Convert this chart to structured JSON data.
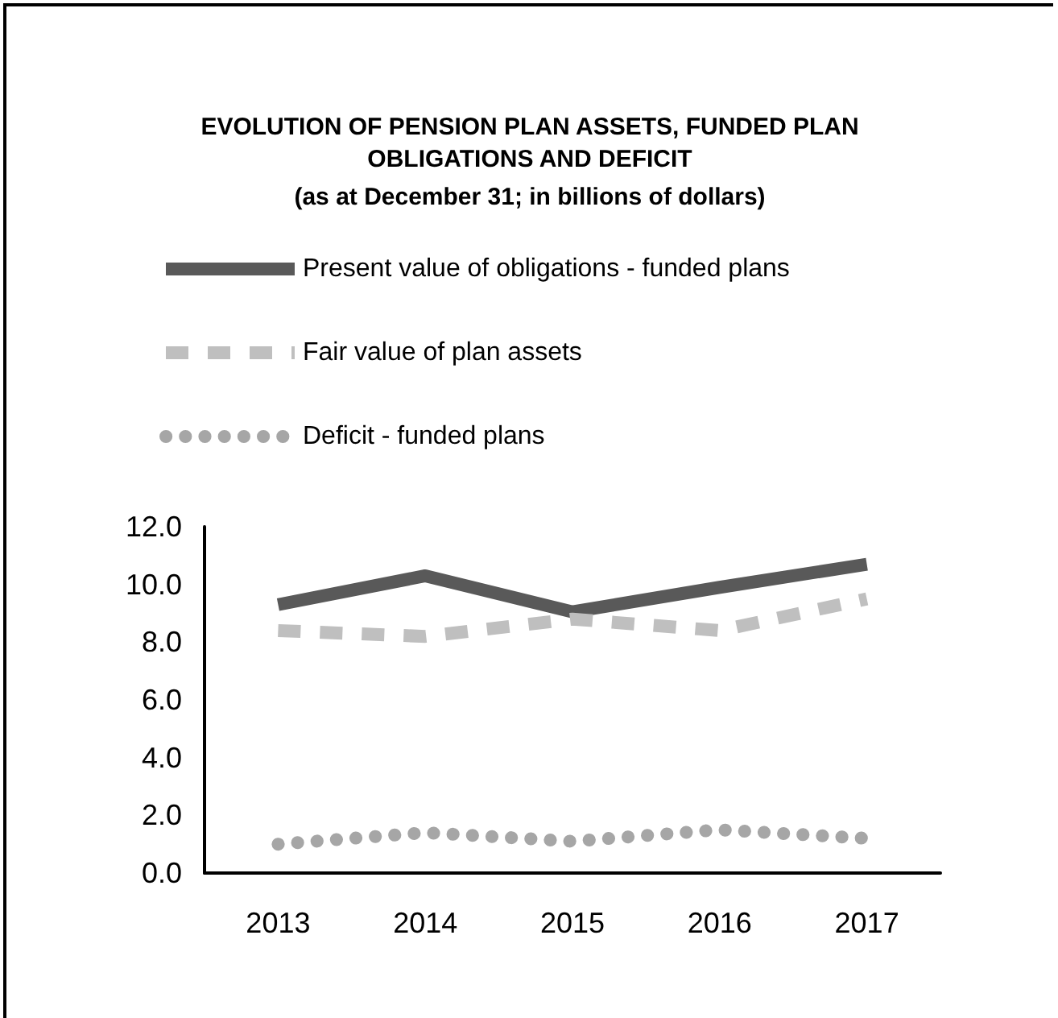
{
  "chart_data": {
    "type": "line",
    "title": "EVOLUTION OF PENSION PLAN ASSETS, FUNDED PLAN\nOBLIGATIONS AND DEFICIT",
    "subtitle": "(as at December 31; in billions of dollars)",
    "categories": [
      "2013",
      "2014",
      "2015",
      "2016",
      "2017"
    ],
    "series": [
      {
        "name": "Present value of obligations - funded plans",
        "color": "#595959",
        "line_style": "solid",
        "values": [
          9.3,
          10.3,
          9.05,
          9.9,
          10.7
        ]
      },
      {
        "name": "Fair value of plan assets",
        "color": "#bfbfbf",
        "line_style": "dashed",
        "values": [
          8.4,
          8.2,
          8.8,
          8.4,
          9.5
        ]
      },
      {
        "name": "Deficit - funded plans",
        "color": "#a6a6a6",
        "line_style": "dotted",
        "values": [
          1.0,
          1.4,
          1.1,
          1.5,
          1.2
        ]
      }
    ],
    "ylim": [
      0,
      12
    ],
    "yticks": [
      {
        "value": 0,
        "label": "0.0"
      },
      {
        "value": 2,
        "label": "2.0"
      },
      {
        "value": 4,
        "label": "4.0"
      },
      {
        "value": 6,
        "label": "6.0"
      },
      {
        "value": 8,
        "label": "8.0"
      },
      {
        "value": 10,
        "label": "10.0"
      },
      {
        "value": 12,
        "label": "12.0"
      }
    ],
    "grid": false,
    "legend": "top",
    "marker": "none"
  }
}
